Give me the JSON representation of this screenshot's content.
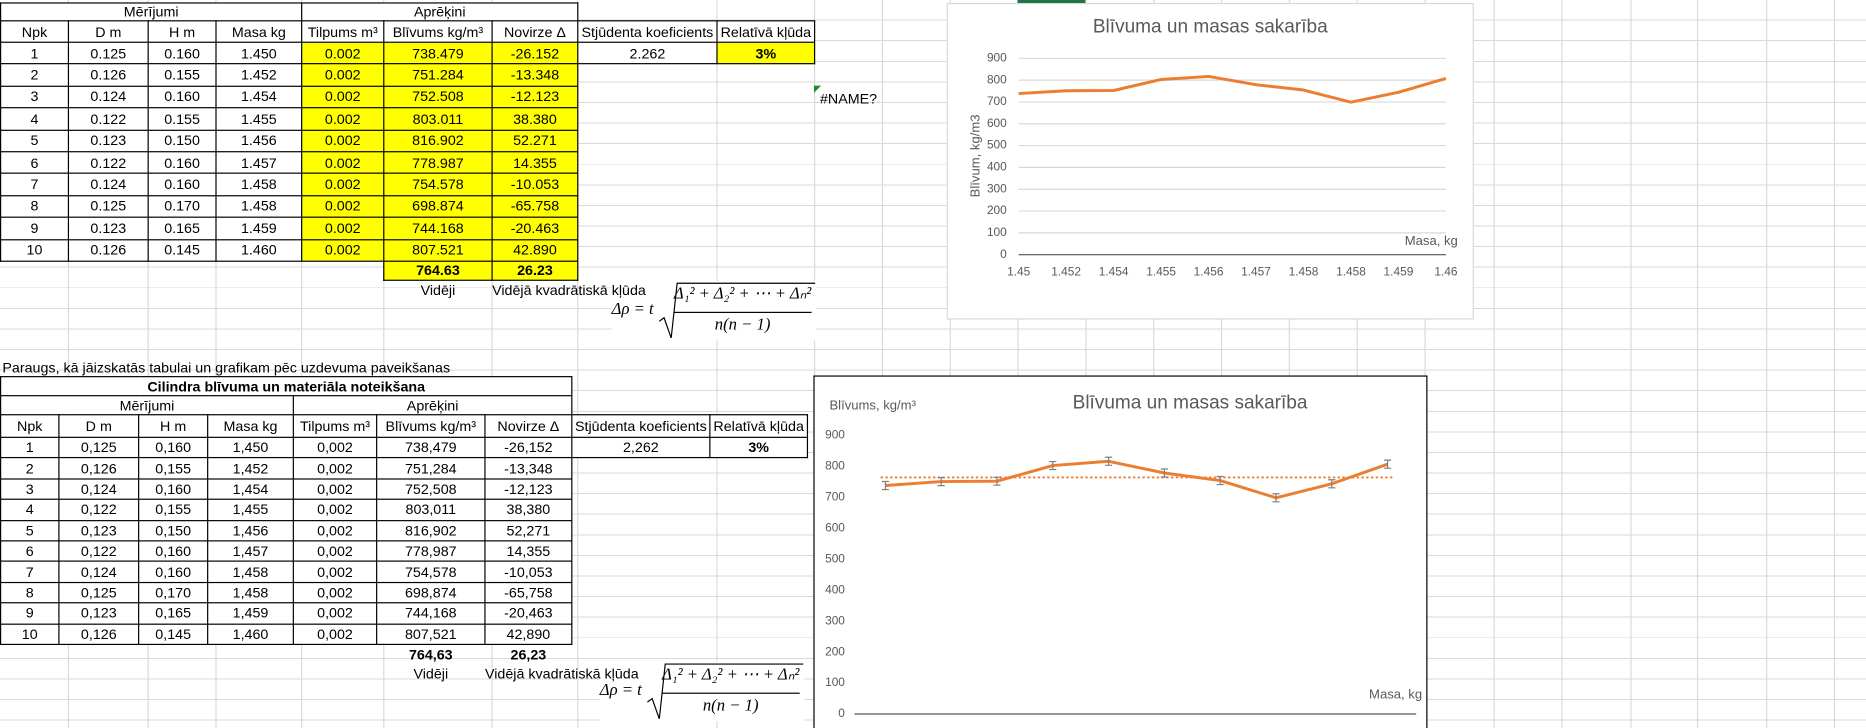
{
  "top_table": {
    "groups": [
      "Mērījumi",
      "Aprēķini"
    ],
    "headers": [
      "Npk",
      "D m",
      "H m",
      "Masa kg",
      "Tilpums m³",
      "Blīvums kg/m³",
      "Novirze Δ",
      "Stjūdenta koeficients",
      "Relatīvā kļūda"
    ],
    "rows": [
      [
        "1",
        "0.125",
        "0.160",
        "1.450",
        "0.002",
        "738.479",
        "-26.152",
        "2.262",
        "3%"
      ],
      [
        "2",
        "0.126",
        "0.155",
        "1.452",
        "0.002",
        "751.284",
        "-13.348"
      ],
      [
        "3",
        "0.124",
        "0.160",
        "1.454",
        "0.002",
        "752.508",
        "-12.123"
      ],
      [
        "4",
        "0.122",
        "0.155",
        "1.455",
        "0.002",
        "803.011",
        "38.380"
      ],
      [
        "5",
        "0.123",
        "0.150",
        "1.456",
        "0.002",
        "816.902",
        "52.271"
      ],
      [
        "6",
        "0.122",
        "0.160",
        "1.457",
        "0.002",
        "778.987",
        "14.355"
      ],
      [
        "7",
        "0.124",
        "0.160",
        "1.458",
        "0.002",
        "754.578",
        "-10.053"
      ],
      [
        "8",
        "0.125",
        "0.170",
        "1.458",
        "0.002",
        "698.874",
        "-65.758"
      ],
      [
        "9",
        "0.123",
        "0.165",
        "1.459",
        "0.002",
        "744.168",
        "-20.463"
      ],
      [
        "10",
        "0.126",
        "0.145",
        "1.460",
        "0.002",
        "807.521",
        "42.890"
      ]
    ],
    "average": "764.63",
    "mean_square_error": "26.23",
    "average_label": "Vidēji",
    "error_label": "Vidējā kvadrātiskā kļūda",
    "error_note": "#NAME?"
  },
  "formula": {
    "lhs": "Δρ = t",
    "numerator": "Δ₁² + Δ₂² + ⋯ + Δₙ²",
    "denominator": "n(n − 1)"
  },
  "sample_caption": "Paraugs, kā jāizskatās tabulai un grafikam pēc uzdevuma paveikšanas",
  "bottom_table": {
    "title": "Cilindra blīvuma un materiāla noteikšana",
    "groups": [
      "Mērījumi",
      "Aprēķini"
    ],
    "headers": [
      "Npk",
      "D m",
      "H m",
      "Masa kg",
      "Tilpums m³",
      "Blīvums kg/m³",
      "Novirze Δ",
      "Stjūdenta koeficients",
      "Relatīvā kļūda"
    ],
    "rows": [
      [
        "1",
        "0,125",
        "0,160",
        "1,450",
        "0,002",
        "738,479",
        "-26,152",
        "2,262",
        "3%"
      ],
      [
        "2",
        "0,126",
        "0,155",
        "1,452",
        "0,002",
        "751,284",
        "-13,348"
      ],
      [
        "3",
        "0,124",
        "0,160",
        "1,454",
        "0,002",
        "752,508",
        "-12,123"
      ],
      [
        "4",
        "0,122",
        "0,155",
        "1,455",
        "0,002",
        "803,011",
        "38,380"
      ],
      [
        "5",
        "0,123",
        "0,150",
        "1,456",
        "0,002",
        "816,902",
        "52,271"
      ],
      [
        "6",
        "0,122",
        "0,160",
        "1,457",
        "0,002",
        "778,987",
        "14,355"
      ],
      [
        "7",
        "0,124",
        "0,160",
        "1,458",
        "0,002",
        "754,578",
        "-10,053"
      ],
      [
        "8",
        "0,125",
        "0,170",
        "1,458",
        "0,002",
        "698,874",
        "-65,758"
      ],
      [
        "9",
        "0,123",
        "0,165",
        "1,459",
        "0,002",
        "744,168",
        "-20,463"
      ],
      [
        "10",
        "0,126",
        "0,145",
        "1,460",
        "0,002",
        "807,521",
        "42,890"
      ]
    ],
    "average": "764,63",
    "mean_square_error": "26,23",
    "average_label": "Vidēji",
    "error_label": "Vidējā kvadrātiskā kļūda"
  },
  "chart_data": [
    {
      "type": "line",
      "title": "Blīvuma un masas sakarība",
      "x_label": "Masa, kg",
      "y_label": "Blīvum, kg/m3",
      "categories": [
        "1.45",
        "1.452",
        "1.454",
        "1.455",
        "1.456",
        "1.457",
        "1.458",
        "1.458",
        "1.459",
        "1.46"
      ],
      "values": [
        738.479,
        751.284,
        752.508,
        803.011,
        816.902,
        778.987,
        754.578,
        698.874,
        744.168,
        807.521
      ],
      "color": "#ed7d31",
      "ylim": [
        0,
        900
      ],
      "yticks": [
        0,
        100,
        200,
        300,
        400,
        500,
        600,
        700,
        800,
        900
      ],
      "grid": true
    },
    {
      "type": "line",
      "title": "Blīvuma un masas sakarība",
      "x_label": "Masa, kg",
      "y_label": "Blīvums, kg/m³",
      "values": [
        738.479,
        751.284,
        752.508,
        803.011,
        816.902,
        778.987,
        754.578,
        698.874,
        744.168,
        807.521
      ],
      "error": 13,
      "trendline": 764.63,
      "color": "#ed7d31",
      "ylim": [
        0,
        900
      ],
      "yticks": [
        0,
        100,
        200,
        300,
        400,
        500,
        600,
        700,
        800,
        900
      ],
      "grid": false
    }
  ]
}
